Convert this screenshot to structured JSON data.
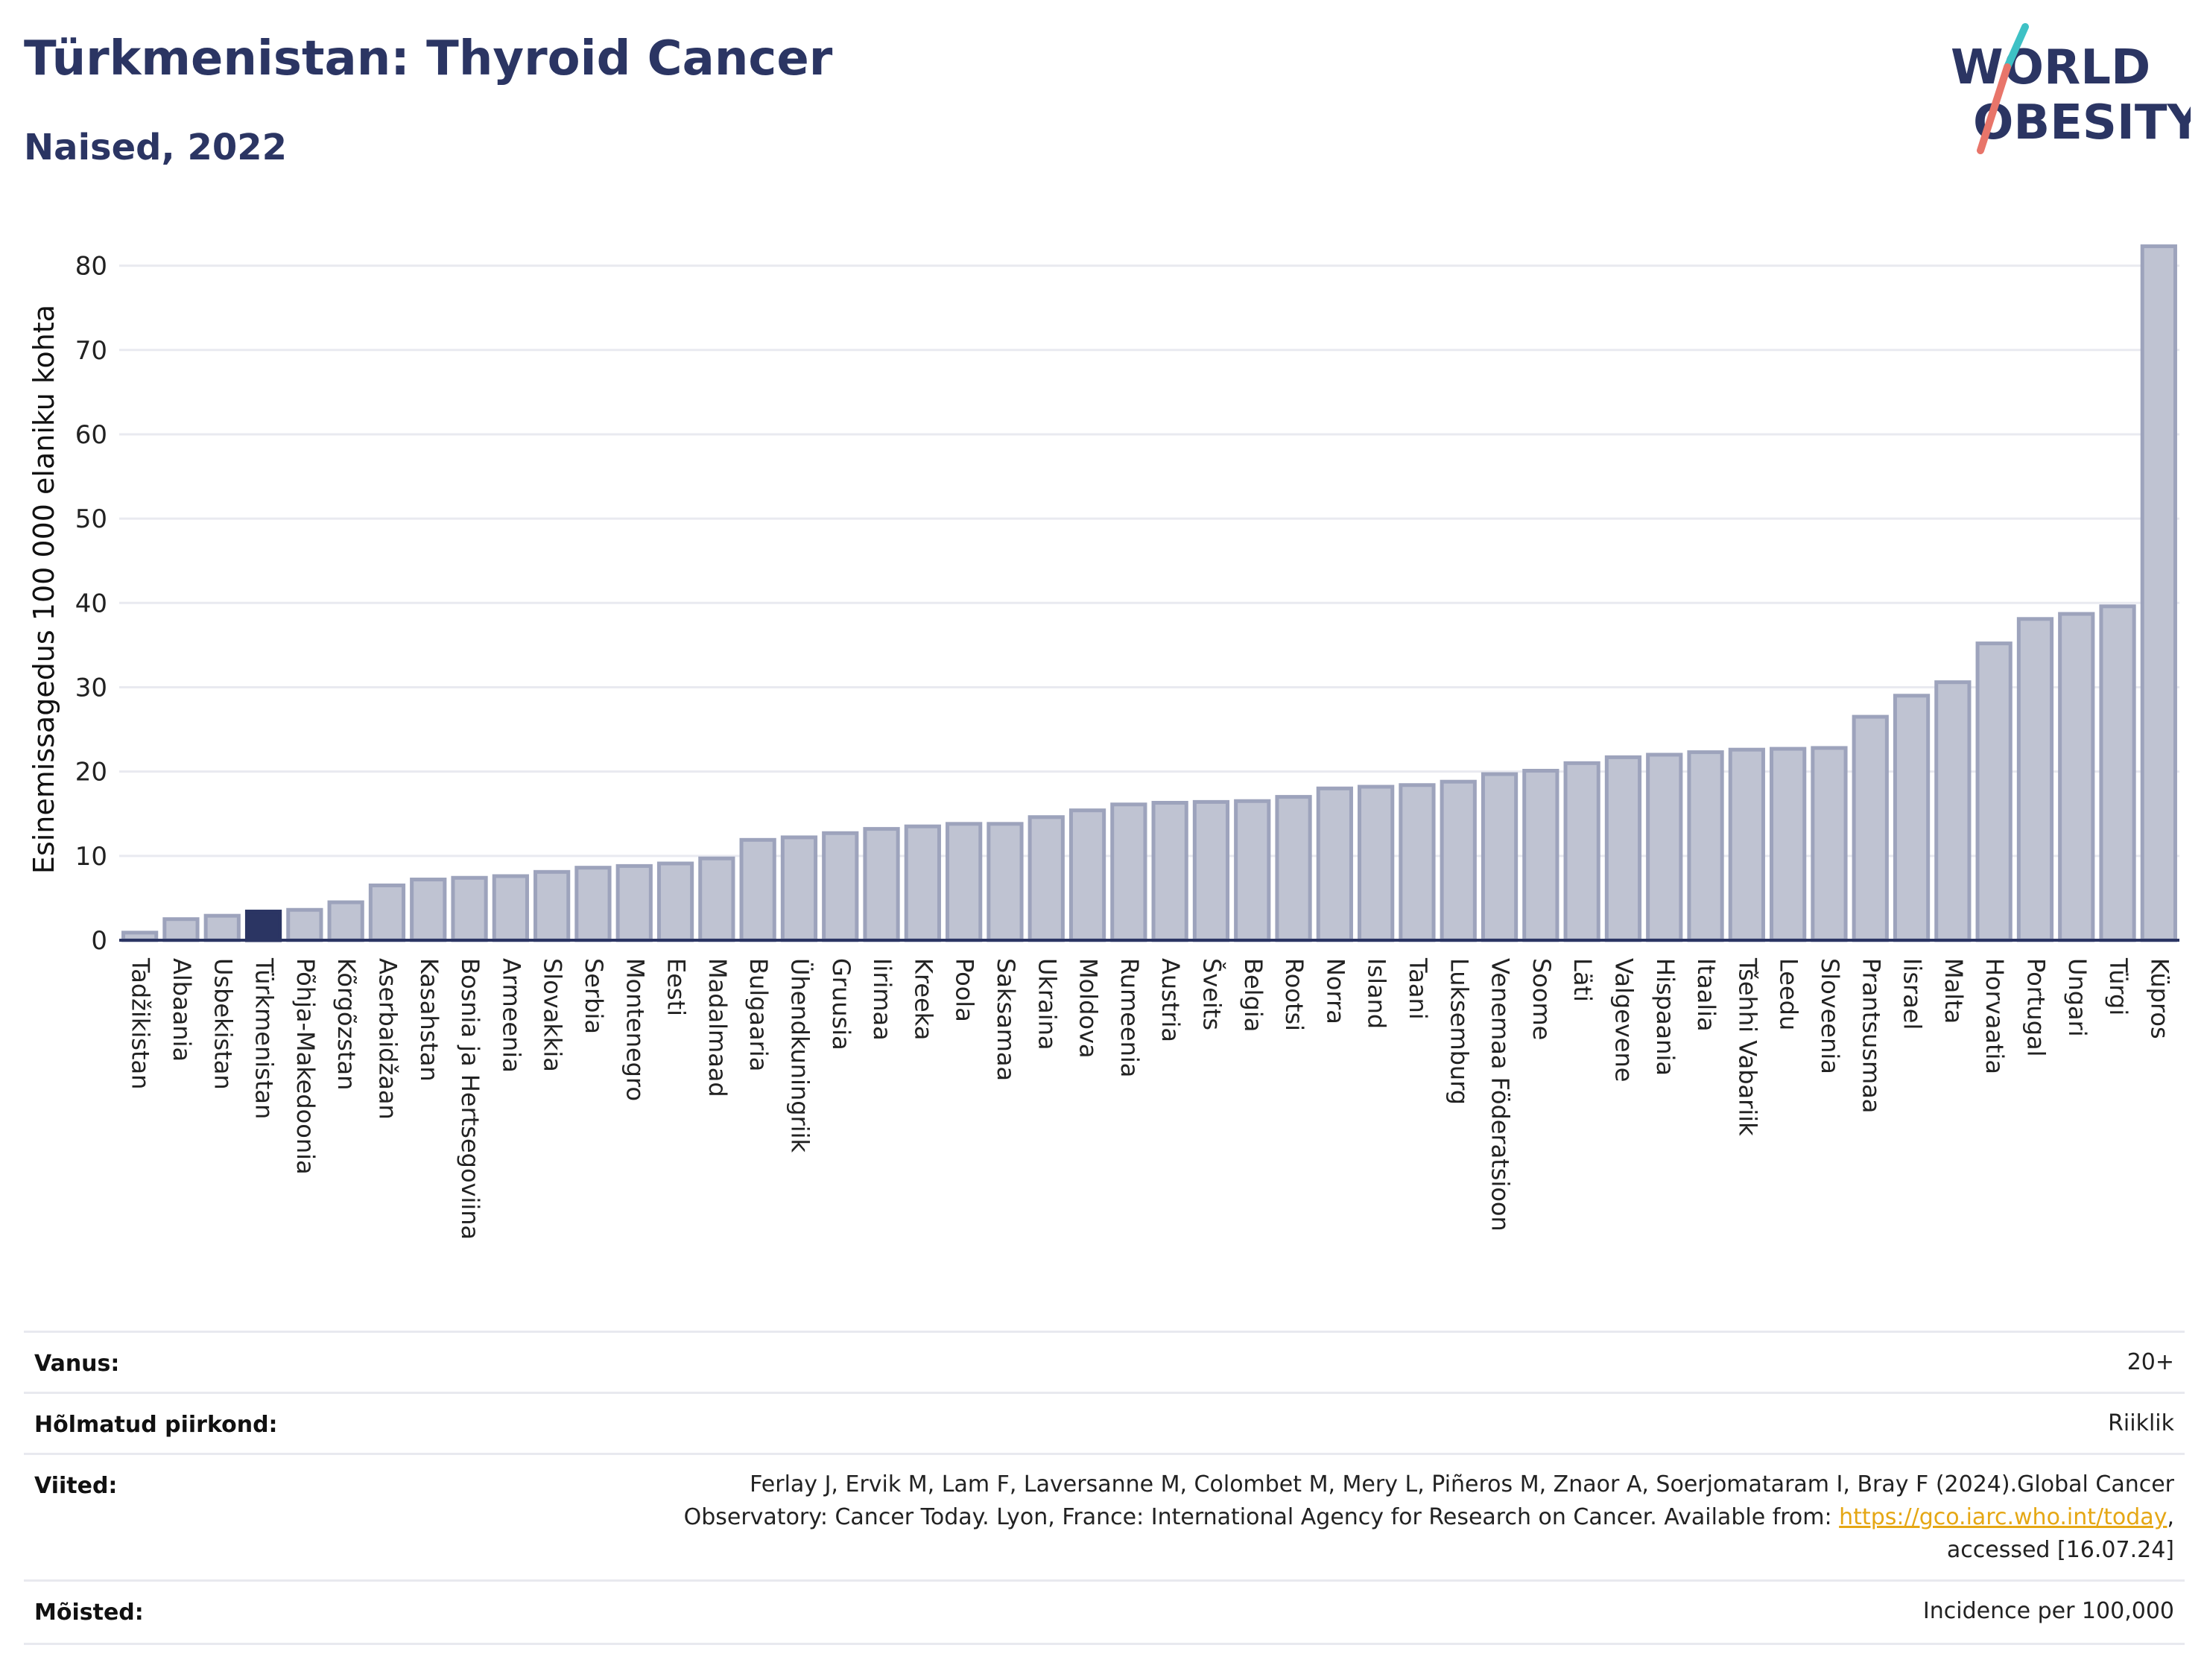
{
  "header": {
    "title": "Türkmenistan: Thyroid Cancer",
    "subtitle": "Naised, 2022"
  },
  "logo": {
    "line1": "WORLD",
    "line2": "OBESITY",
    "accent_colors": [
      "#3ec1c5",
      "#e8756a"
    ]
  },
  "chart_data": {
    "type": "bar",
    "ylabel": "Esinemissagedus 100 000 elaniku kohta",
    "ylim": [
      0,
      85
    ],
    "yticks": [
      0,
      10,
      20,
      30,
      40,
      50,
      60,
      70,
      80
    ],
    "grid": true,
    "highlight": "Türkmenistan",
    "colors": {
      "bar": "#bfc3d2",
      "bar_edge": "#9da3bc",
      "highlight": "#2b3563"
    },
    "categories": [
      "Tadžikistan",
      "Albaania",
      "Usbekistan",
      "Türkmenistan",
      "Põhja-Makedoonia",
      "Kõrgõzstan",
      "Aserbaidžaan",
      "Kasahstan",
      "Bosnia ja Hertsegoviina",
      "Armeenia",
      "Slovakkia",
      "Serbia",
      "Montenegro",
      "Eesti",
      "Madalmaad",
      "Bulgaaria",
      "Ühendkuningriik",
      "Gruusia",
      "Iirimaa",
      "Kreeka",
      "Poola",
      "Saksamaa",
      "Ukraina",
      "Moldova",
      "Rumeenia",
      "Austria",
      "Šveits",
      "Belgia",
      "Rootsi",
      "Norra",
      "Island",
      "Taani",
      "Luksemburg",
      "Venemaa Föderatsioon",
      "Soome",
      "Läti",
      "Valgevene",
      "Hispaania",
      "Itaalia",
      "Tšehhi Vabariik",
      "Leedu",
      "Sloveenia",
      "Prantsusmaa",
      "Iisrael",
      "Malta",
      "Horvaatia",
      "Portugal",
      "Ungari",
      "Türgi",
      "Küpros"
    ],
    "values": [
      0.9,
      2.5,
      2.9,
      3.4,
      3.6,
      4.5,
      6.5,
      7.2,
      7.4,
      7.6,
      8.1,
      8.6,
      8.8,
      9.1,
      9.7,
      11.9,
      12.2,
      12.7,
      13.2,
      13.5,
      13.8,
      13.8,
      14.6,
      15.4,
      16.1,
      16.3,
      16.4,
      16.5,
      17.0,
      18.0,
      18.2,
      18.4,
      18.8,
      19.7,
      20.1,
      21.0,
      21.7,
      22.0,
      22.3,
      22.6,
      22.7,
      22.8,
      26.5,
      29.0,
      30.6,
      35.2,
      38.1,
      38.7,
      39.6,
      82.3
    ]
  },
  "meta": {
    "rows": [
      {
        "label": "Vanus:",
        "value": "20+"
      },
      {
        "label": "Hõlmatud piirkond:",
        "value": "Riiklik"
      },
      {
        "label": "Viited:",
        "value_line1": "Ferlay J, Ervik M, Lam F, Laversanne M, Colombet M, Mery L, Piñeros M, Znaor A, Soerjomataram I, Bray F (2024).Global Cancer",
        "value_line2_pre": "Observatory: Cancer Today. Lyon, France: International Agency for Research on Cancer. Available from: ",
        "value_link": "https://gco.iarc.who.int/today",
        "value_line2_post": ",",
        "value_line3": "accessed [16.07.24]"
      },
      {
        "label": "Mõisted:",
        "value": "Incidence per 100,000"
      }
    ]
  }
}
